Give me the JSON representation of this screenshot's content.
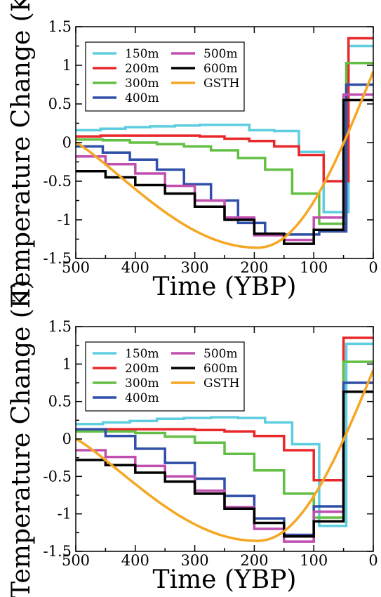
{
  "chart_data": [
    {
      "type": "line",
      "ylabel": "Temperature Change (K)",
      "xlabel": "Time (YBP)",
      "xlim": [
        500,
        0
      ],
      "ylim": [
        -1.5,
        1.5
      ],
      "xticks": [
        "500",
        "400",
        "300",
        "200",
        "100",
        "0"
      ],
      "yticks": [
        "1.5",
        "1",
        "0.5",
        "0",
        "-0.5",
        "-1",
        "-1.5"
      ],
      "legend_position": "top-left",
      "series": [
        {
          "name": "150m",
          "color": "#5ecde0",
          "steps": [
            0.16,
            0.18,
            0.2,
            0.21,
            0.22,
            0.23,
            0.23,
            0.16,
            0.15,
            -0.12,
            -0.9,
            1.25
          ]
        },
        {
          "name": "200m",
          "color": "#e8282a",
          "steps": [
            0.08,
            0.09,
            0.09,
            0.09,
            0.09,
            0.08,
            0.05,
            0.02,
            -0.05,
            -0.16,
            -0.5,
            1.35
          ]
        },
        {
          "name": "300m",
          "color": "#63bf43",
          "steps": [
            0.04,
            0.03,
            0.0,
            -0.02,
            -0.05,
            -0.1,
            -0.2,
            -0.35,
            -0.66,
            -1.05,
            1.03
          ]
        },
        {
          "name": "400m",
          "color": "#2f4fa8",
          "steps": [
            -0.05,
            -0.13,
            -0.22,
            -0.35,
            -0.54,
            -0.75,
            -1.04,
            -1.19,
            -1.19,
            -1.15,
            0.75
          ]
        },
        {
          "name": "500m",
          "color": "#c04fb0",
          "steps": [
            -0.18,
            -0.28,
            -0.4,
            -0.56,
            -0.75,
            -0.97,
            -1.2,
            -1.26,
            -0.97,
            0.62
          ]
        },
        {
          "name": "600m",
          "color": "#000000",
          "steps": [
            -0.37,
            -0.45,
            -0.55,
            -0.66,
            -0.83,
            -1.0,
            -1.18,
            -1.31,
            -1.13,
            0.55
          ]
        },
        {
          "name": "GSTH",
          "color": "#f5a623",
          "curve": {
            "x0": 500,
            "y0": 0,
            "xmin": 195,
            "ymin": -1.36,
            "x1": 0,
            "y1": 0.92
          }
        }
      ]
    },
    {
      "type": "line",
      "ylabel": "Temperature Change (K)",
      "xlabel": "Time (YBP)",
      "xlim": [
        500,
        0
      ],
      "ylim": [
        -1.5,
        1.5
      ],
      "xticks": [
        "500",
        "400",
        "300",
        "200",
        "100",
        "0"
      ],
      "yticks": [
        "1.5",
        "1",
        "0.5",
        "0",
        "-0.5",
        "-1",
        "-1.5"
      ],
      "legend_position": "top-left",
      "series": [
        {
          "name": "150m",
          "color": "#5ecde0",
          "steps": [
            0.2,
            0.22,
            0.24,
            0.27,
            0.28,
            0.29,
            0.28,
            0.22,
            -0.07,
            -1.16,
            1.27
          ]
        },
        {
          "name": "200m",
          "color": "#e8282a",
          "steps": [
            0.12,
            0.13,
            0.13,
            0.13,
            0.12,
            0.1,
            0.04,
            -0.15,
            -0.55,
            1.35
          ]
        },
        {
          "name": "300m",
          "color": "#63bf43",
          "steps": [
            0.1,
            0.1,
            0.08,
            0.03,
            -0.05,
            -0.2,
            -0.42,
            -0.73,
            -1.05,
            1.03
          ]
        },
        {
          "name": "400m",
          "color": "#2f4fa8",
          "steps": [
            0.13,
            0.04,
            -0.13,
            -0.32,
            -0.53,
            -0.76,
            -1.06,
            -1.28,
            -0.9,
            0.75
          ]
        },
        {
          "name": "500m",
          "color": "#c04fb0",
          "steps": [
            -0.15,
            -0.24,
            -0.36,
            -0.5,
            -0.69,
            -0.91,
            -1.2,
            -1.37,
            -0.97,
            0.63
          ]
        },
        {
          "name": "600m",
          "color": "#000000",
          "steps": [
            -0.28,
            -0.35,
            -0.45,
            -0.57,
            -0.73,
            -0.93,
            -1.12,
            -1.3,
            -1.1,
            0.63
          ]
        },
        {
          "name": "GSTH",
          "color": "#f5a623",
          "curve": {
            "x0": 500,
            "y0": 0,
            "xmin": 195,
            "ymin": -1.36,
            "x1": 0,
            "y1": 0.92
          }
        }
      ]
    }
  ],
  "legend_layout": [
    [
      "150m",
      "500m"
    ],
    [
      "200m",
      "600m"
    ],
    [
      "300m",
      "GSTH"
    ],
    [
      "400m",
      ""
    ]
  ]
}
